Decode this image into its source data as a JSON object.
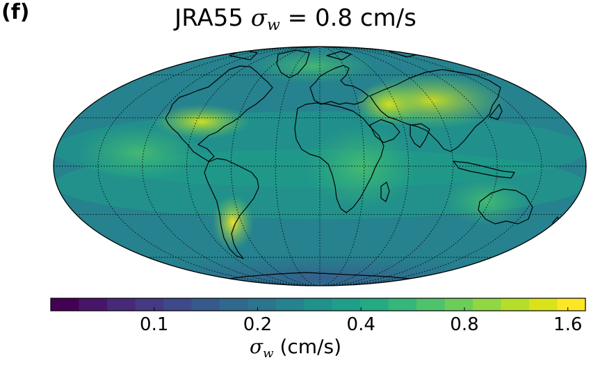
{
  "panel_label": "(f)",
  "title": {
    "prefix": "JRA55 ",
    "symbol": "σ",
    "subscript": "w",
    "suffix": " = 0.8 cm/s"
  },
  "chart_data": {
    "type": "heatmap",
    "projection": "mollweide",
    "dataset": "JRA55",
    "global_value": 0.8,
    "global_value_unit": "cm/s",
    "grid": true,
    "colormap": "viridis",
    "colorbar": {
      "scale": "log",
      "range": [
        0.05,
        1.8
      ],
      "tick_values": [
        0.1,
        0.2,
        0.4,
        0.8,
        1.6
      ],
      "tick_labels": [
        "0.1",
        "0.2",
        "0.4",
        "0.8",
        "1.6"
      ],
      "label": {
        "symbol": "σ",
        "subscript": "w",
        "unit": " (cm/s)"
      },
      "colors": [
        "#440154",
        "#481668",
        "#482878",
        "#443983",
        "#3e4989",
        "#375a8c",
        "#31688e",
        "#2b758e",
        "#26828e",
        "#21918c",
        "#1f9e89",
        "#25ab82",
        "#35b779",
        "#4ec36b",
        "#6ccd5a",
        "#90d743",
        "#b5de2b",
        "#dae319",
        "#fde725"
      ]
    }
  }
}
